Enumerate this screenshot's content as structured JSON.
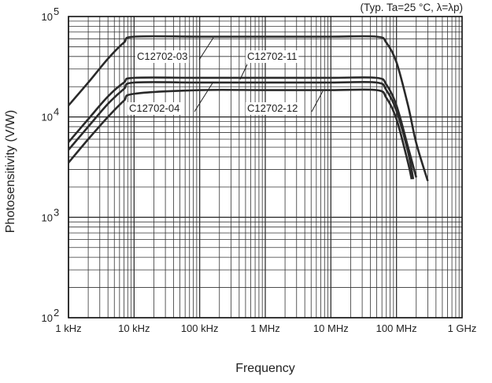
{
  "chart_data": {
    "type": "line",
    "title": "",
    "note": "(Typ. Ta=25 °C, λ=λp)",
    "xlabel": "Frequency",
    "ylabel": "Photosensitivity (V/W)",
    "x_scale": "log",
    "y_scale": "log",
    "xlim": [
      1000,
      1000000000
    ],
    "ylim": [
      100,
      100000
    ],
    "x_ticks": [
      {
        "value": 1000,
        "label": "1 kHz"
      },
      {
        "value": 10000,
        "label": "10 kHz"
      },
      {
        "value": 100000,
        "label": "100 kHz"
      },
      {
        "value": 1000000,
        "label": "1 MHz"
      },
      {
        "value": 10000000,
        "label": "10 MHz"
      },
      {
        "value": 100000000,
        "label": "100 MHz"
      },
      {
        "value": 1000000000,
        "label": "1 GHz"
      }
    ],
    "y_ticks": [
      {
        "value": 100,
        "base": "10",
        "exp": "2"
      },
      {
        "value": 1000,
        "base": "10",
        "exp": "3"
      },
      {
        "value": 10000,
        "base": "10",
        "exp": "4"
      },
      {
        "value": 100000,
        "base": "10",
        "exp": "5"
      }
    ],
    "grid": true,
    "legend": "none",
    "series": [
      {
        "name": "C12702-03",
        "x": [
          1000,
          2000,
          4000,
          7000,
          10000,
          100000,
          1000000,
          10000000,
          50000000,
          70000000,
          100000000,
          150000000,
          200000000,
          300000000
        ],
        "y": [
          13000,
          22000,
          38000,
          55000,
          63000,
          63000,
          63000,
          63000,
          63000,
          55000,
          35000,
          13000,
          5500,
          2300
        ]
      },
      {
        "name": "C12702-11",
        "x": [
          1000,
          2000,
          4000,
          7000,
          10000,
          100000,
          1000000,
          10000000,
          50000000,
          70000000,
          100000000,
          150000000,
          200000000
        ],
        "y": [
          5600,
          9500,
          16000,
          22000,
          24500,
          24500,
          24500,
          24500,
          24500,
          21000,
          13000,
          5000,
          2500
        ]
      },
      {
        "name": "C12702-04",
        "x": [
          1000,
          2000,
          4000,
          7000,
          10000,
          100000,
          1000000,
          10000000,
          50000000,
          70000000,
          100000000,
          150000000,
          180000000
        ],
        "y": [
          4700,
          8000,
          13500,
          19000,
          22000,
          22000,
          22000,
          22000,
          22000,
          18500,
          11500,
          4500,
          2400
        ]
      },
      {
        "name": "C12702-12",
        "x": [
          1000,
          2000,
          4000,
          7000,
          10000,
          100000,
          1000000,
          10000000,
          50000000,
          70000000,
          100000000,
          150000000,
          170000000
        ],
        "y": [
          3500,
          6000,
          10000,
          14500,
          17000,
          18500,
          18500,
          18500,
          18500,
          15500,
          9500,
          3500,
          2400
        ]
      }
    ],
    "annotations": [
      {
        "text": "C12702-03",
        "series": "C12702-03"
      },
      {
        "text": "C12702-11",
        "series": "C12702-11"
      },
      {
        "text": "C12702-04",
        "series": "C12702-04"
      },
      {
        "text": "C12702-12",
        "series": "C12702-12"
      }
    ],
    "colors": {
      "grid": "#333333",
      "line": "#2a2a2a",
      "frame": "#111111",
      "text": "#222222"
    }
  }
}
